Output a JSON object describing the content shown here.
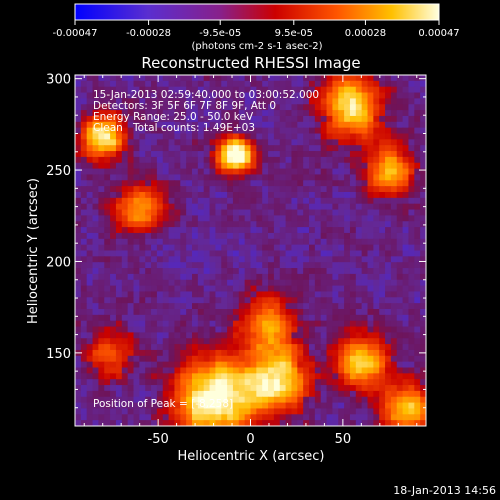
{
  "colorbar": {
    "tick_labels": [
      "-0.00047",
      "-0.00028",
      "-9.5e-05",
      "9.5e-05",
      "0.00028",
      "0.00047"
    ],
    "tick_values": [
      -0.00047,
      -0.00028,
      -9.5e-05,
      9.5e-05,
      0.00028,
      0.00047
    ],
    "range": [
      -0.00047,
      0.00047
    ],
    "units": "(photons cm-2 s-1 asec-2)",
    "colormap": [
      "#0000ff",
      "#6633cc",
      "#991a66",
      "#cc0000",
      "#ff6600",
      "#ffcc00",
      "#ffffe0"
    ]
  },
  "chart_data": {
    "type": "heatmap",
    "title": "Reconstructed RHESSI Image",
    "xlabel": "Heliocentric X (arcsec)",
    "ylabel": "Heliocentric Y (arcsec)",
    "xlim": [
      -95,
      95
    ],
    "ylim": [
      110,
      302
    ],
    "x_ticks": [
      -50,
      0,
      50
    ],
    "x_tick_labels": [
      "-50",
      "0",
      "50"
    ],
    "y_ticks": [
      150,
      200,
      250,
      300
    ],
    "y_tick_labels": [
      "150",
      "200",
      "250",
      "300"
    ],
    "annotations": [
      "15-Jan-2013 02:59:40.000 to 03:00:52.000",
      "Detectors: 3F 5F 6F 7F 8F 9F, Att 0",
      "Energy Range: 25.0 - 50.0 keV",
      "Clean",
      "Total counts: 1.49E+03"
    ],
    "peak_label": "Position of Peak = [",
    "peak_value": "-8,258]",
    "hotspots": [
      {
        "x": -8,
        "y": 258,
        "intensity": 1.0,
        "width": 7
      },
      {
        "x": -80,
        "y": 268,
        "intensity": 0.85,
        "width": 9
      },
      {
        "x": 55,
        "y": 285,
        "intensity": 0.8,
        "width": 12
      },
      {
        "x": 75,
        "y": 250,
        "intensity": 0.65,
        "width": 10
      },
      {
        "x": -60,
        "y": 230,
        "intensity": 0.6,
        "width": 10
      },
      {
        "x": -20,
        "y": 125,
        "intensity": 0.95,
        "width": 16
      },
      {
        "x": 15,
        "y": 135,
        "intensity": 0.75,
        "width": 12
      },
      {
        "x": 60,
        "y": 145,
        "intensity": 0.8,
        "width": 10
      },
      {
        "x": 85,
        "y": 120,
        "intensity": 0.7,
        "width": 10
      },
      {
        "x": 10,
        "y": 165,
        "intensity": 0.55,
        "width": 12
      },
      {
        "x": -75,
        "y": 150,
        "intensity": 0.45,
        "width": 10
      }
    ]
  },
  "footer": {
    "timestamp": "18-Jan-2013 14:56"
  }
}
